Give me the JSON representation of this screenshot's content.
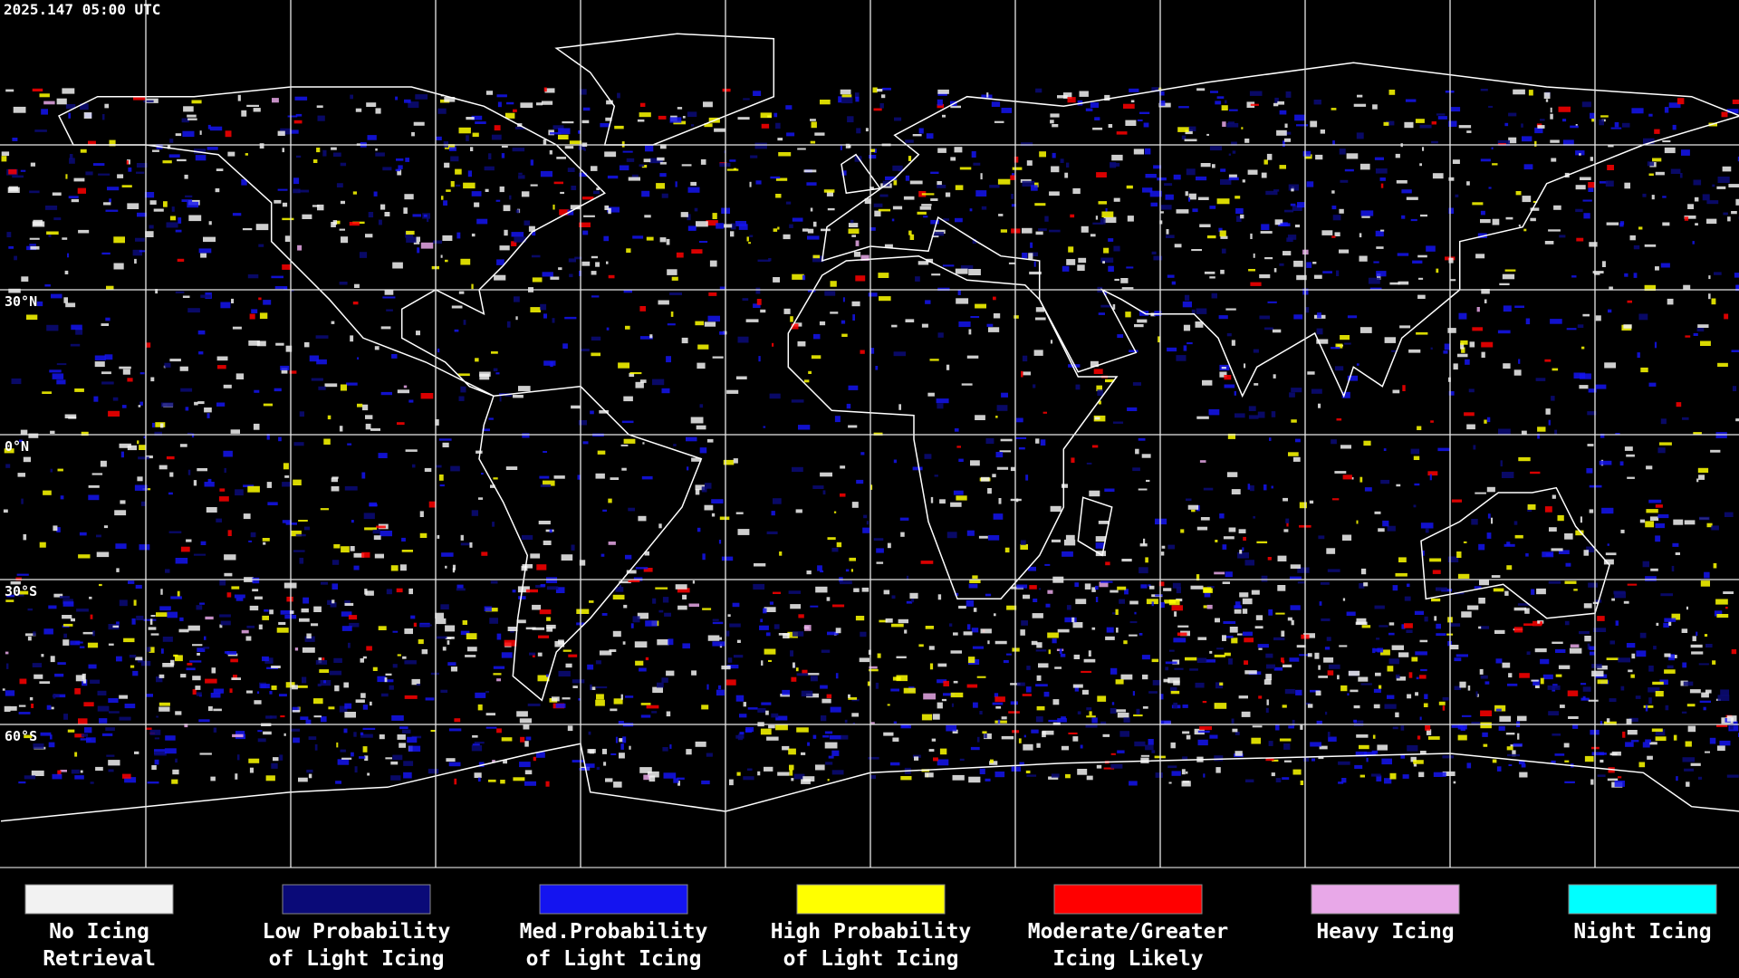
{
  "header": {
    "timestamp": "2025.147 05:00 UTC"
  },
  "map": {
    "latitude_labels": [
      "30°N",
      "0°N",
      "30°S",
      "60°S"
    ]
  },
  "legend": [
    {
      "lines": [
        "No Icing",
        "Retrieval"
      ],
      "color": "#f2f2f2"
    },
    {
      "lines": [
        "Low Probability",
        "of Light Icing"
      ],
      "color": "#0a0a78"
    },
    {
      "lines": [
        "Med.Probability",
        "of Light Icing"
      ],
      "color": "#1414f0"
    },
    {
      "lines": [
        "High Probability",
        "of Light Icing"
      ],
      "color": "#ffff00"
    },
    {
      "lines": [
        "Moderate/Greater",
        "Icing Likely"
      ],
      "color": "#ff0000"
    },
    {
      "lines": [
        "Heavy Icing"
      ],
      "color": "#e8a8e8"
    },
    {
      "lines": [
        "Night Icing"
      ],
      "color": "#00ffff"
    }
  ]
}
